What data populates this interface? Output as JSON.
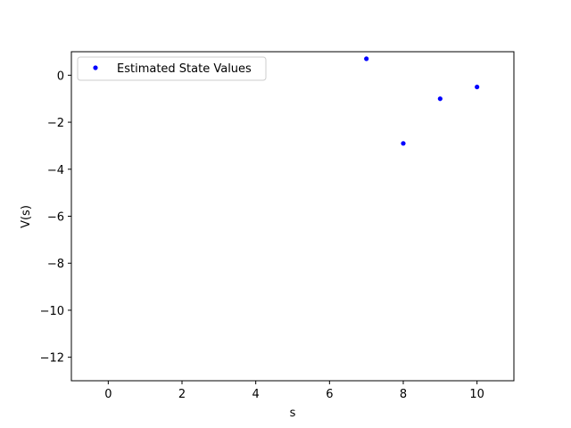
{
  "chart_data": {
    "type": "scatter",
    "title": "",
    "xlabel": "s",
    "ylabel": "V(s)",
    "xlim": [
      -1,
      11
    ],
    "ylim": [
      -13,
      1
    ],
    "xticks": [
      0,
      2,
      4,
      6,
      8,
      10
    ],
    "yticks": [
      0,
      -2,
      -4,
      -6,
      -8,
      -10,
      -12
    ],
    "grid": false,
    "legend_position": "upper-left",
    "series": [
      {
        "name": "Estimated State Values",
        "color": "#0000ff",
        "marker": "dot",
        "x": [
          7,
          8,
          9,
          10
        ],
        "y": [
          0.7,
          -2.9,
          -1.0,
          -0.5
        ]
      }
    ]
  }
}
